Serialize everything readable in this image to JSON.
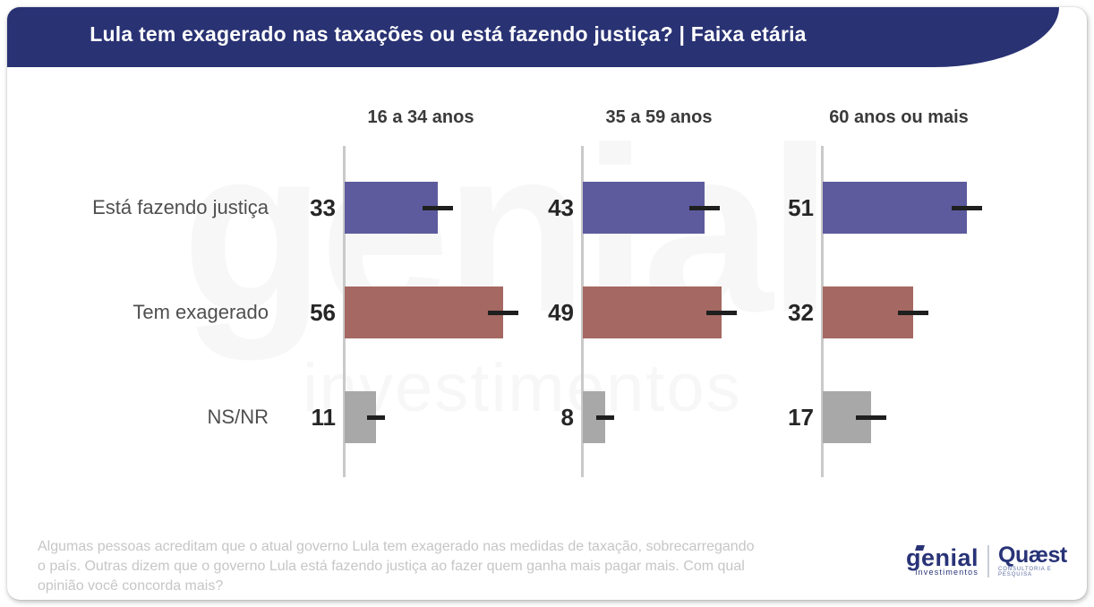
{
  "header": {
    "title": "Lula tem exagerado nas taxações ou está fazendo justiça? | Faixa etária",
    "bg_color": "#293273"
  },
  "chart_data": {
    "type": "bar",
    "orientation": "horizontal",
    "groups": [
      "16 a 34 anos",
      "35 a 59 anos",
      "60 anos ou mais"
    ],
    "categories": [
      "Está fazendo justiça",
      "Tem exagerado",
      "NS/NR"
    ],
    "series": [
      {
        "name": "16 a 34 anos",
        "values": [
          33,
          56,
          11
        ]
      },
      {
        "name": "35 a 59 anos",
        "values": [
          43,
          49,
          8
        ]
      },
      {
        "name": "60 anos ou mais",
        "values": [
          51,
          32,
          17
        ]
      }
    ],
    "category_colors": {
      "Está fazendo justiça": "#5d5b9e",
      "Tem exagerado": "#a56862",
      "NS/NR": "#a8a8a8"
    },
    "error_bars": true,
    "value_labels": true,
    "xlim": [
      0,
      85
    ],
    "grid": false,
    "legend": "none"
  },
  "footnote": {
    "lines": [
      "Algumas pessoas acreditam que o atual governo Lula tem exagerado nas medidas de taxação, sobrecarregando",
      "o país. Outras dizem que o governo Lula está fazendo justiça ao fazer quem ganha mais pagar mais. Com qual",
      "opinião você concorda mais?"
    ]
  },
  "watermark": {
    "line1": "genial",
    "line2": "investimentos"
  },
  "logos": {
    "genial": {
      "name": "genial",
      "sub": "investimentos"
    },
    "quaest": {
      "name": "Quæst",
      "sub": "CONSULTORIA E PESQUISA"
    }
  }
}
